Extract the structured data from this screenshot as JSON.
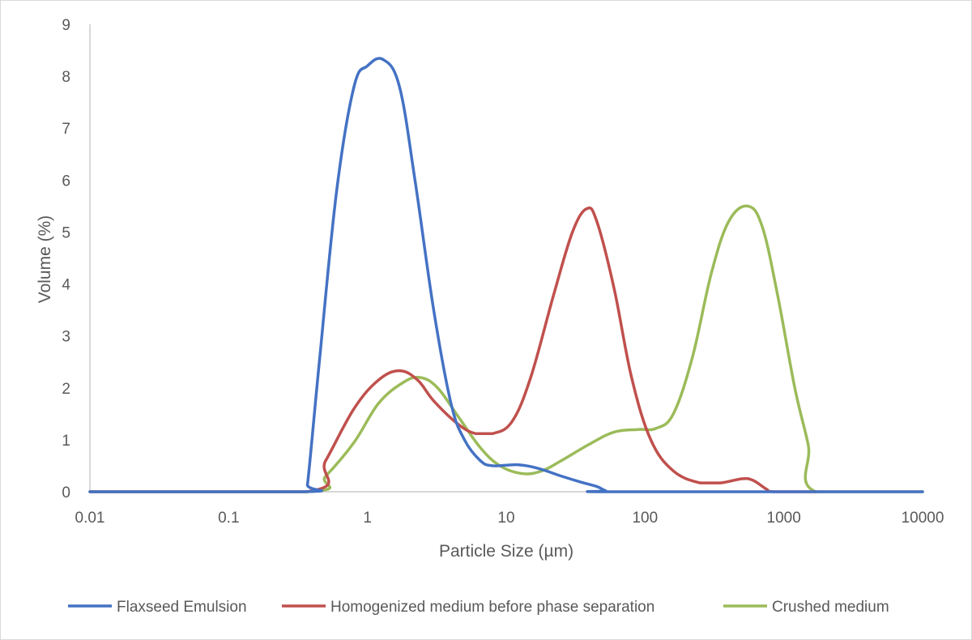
{
  "chart_data": {
    "type": "line",
    "title": "",
    "xlabel": "Particle Size (µm)",
    "ylabel": "Volume (%)",
    "xscale": "log",
    "xlim": [
      0.01,
      10000
    ],
    "ylim": [
      0,
      9
    ],
    "x_ticks": [
      0.01,
      0.1,
      1,
      10,
      100,
      1000,
      10000
    ],
    "x_tick_labels": [
      "0.01",
      "0.1",
      "1",
      "10",
      "100",
      "1000",
      "10000"
    ],
    "y_ticks": [
      0,
      1,
      2,
      3,
      4,
      5,
      6,
      7,
      8,
      9
    ],
    "y_tick_labels": [
      "0",
      "1",
      "2",
      "3",
      "4",
      "5",
      "6",
      "7",
      "8",
      "9"
    ],
    "grid": false,
    "legend_position": "bottom",
    "series": [
      {
        "name": "Flaxseed Emulsion",
        "color": "#4472c4",
        "points": [
          [
            0.01,
            0
          ],
          [
            0.35,
            0
          ],
          [
            0.37,
            0.15
          ],
          [
            0.45,
            2.5
          ],
          [
            0.6,
            5.8
          ],
          [
            0.8,
            7.8
          ],
          [
            1.0,
            8.2
          ],
          [
            1.3,
            8.32
          ],
          [
            1.7,
            7.8
          ],
          [
            2.2,
            6.0
          ],
          [
            3.0,
            3.5
          ],
          [
            4.0,
            1.7
          ],
          [
            5.0,
            1.0
          ],
          [
            6.5,
            0.6
          ],
          [
            8.0,
            0.5
          ],
          [
            12.0,
            0.52
          ],
          [
            17.0,
            0.45
          ],
          [
            25.0,
            0.3
          ],
          [
            35.0,
            0.18
          ],
          [
            45.0,
            0.1
          ],
          [
            52.0,
            0.02
          ],
          [
            60.0,
            0
          ],
          [
            10000,
            0
          ]
        ]
      },
      {
        "name": "Homogenized medium before phase separation",
        "color": "#c0504d",
        "points": [
          [
            0.01,
            0
          ],
          [
            0.36,
            0
          ],
          [
            0.5,
            0.6
          ],
          [
            0.8,
            1.6
          ],
          [
            1.2,
            2.15
          ],
          [
            1.7,
            2.33
          ],
          [
            2.3,
            2.15
          ],
          [
            3.0,
            1.75
          ],
          [
            4.5,
            1.3
          ],
          [
            6.0,
            1.12
          ],
          [
            8.0,
            1.12
          ],
          [
            11.0,
            1.35
          ],
          [
            15.0,
            2.2
          ],
          [
            22.0,
            3.8
          ],
          [
            30.0,
            5.0
          ],
          [
            38.0,
            5.45
          ],
          [
            45.0,
            5.2
          ],
          [
            60.0,
            3.9
          ],
          [
            80.0,
            2.2
          ],
          [
            110.0,
            1.0
          ],
          [
            160.0,
            0.4
          ],
          [
            250.0,
            0.17
          ],
          [
            350.0,
            0.17
          ],
          [
            500.0,
            0.25
          ],
          [
            600.0,
            0.22
          ],
          [
            750.0,
            0.05
          ],
          [
            850.0,
            0
          ],
          [
            1700.0,
            0
          ]
        ]
      },
      {
        "name": "Crushed medium",
        "color": "#9bbb59",
        "points": [
          [
            0.01,
            0
          ],
          [
            0.37,
            0
          ],
          [
            0.5,
            0.3
          ],
          [
            0.8,
            0.95
          ],
          [
            1.2,
            1.7
          ],
          [
            1.8,
            2.1
          ],
          [
            2.4,
            2.2
          ],
          [
            3.2,
            2.0
          ],
          [
            4.5,
            1.45
          ],
          [
            6.5,
            0.85
          ],
          [
            9.0,
            0.5
          ],
          [
            13.0,
            0.35
          ],
          [
            18.0,
            0.4
          ],
          [
            25.0,
            0.6
          ],
          [
            40.0,
            0.92
          ],
          [
            60.0,
            1.15
          ],
          [
            90.0,
            1.2
          ],
          [
            120.0,
            1.22
          ],
          [
            160.0,
            1.5
          ],
          [
            220.0,
            2.6
          ],
          [
            300.0,
            4.2
          ],
          [
            400.0,
            5.2
          ],
          [
            550.0,
            5.5
          ],
          [
            700.0,
            5.1
          ],
          [
            900.0,
            3.8
          ],
          [
            1200.0,
            2.0
          ],
          [
            1500.0,
            0.9
          ],
          [
            1700.0,
            0
          ],
          [
            10000,
            0
          ]
        ]
      }
    ]
  }
}
